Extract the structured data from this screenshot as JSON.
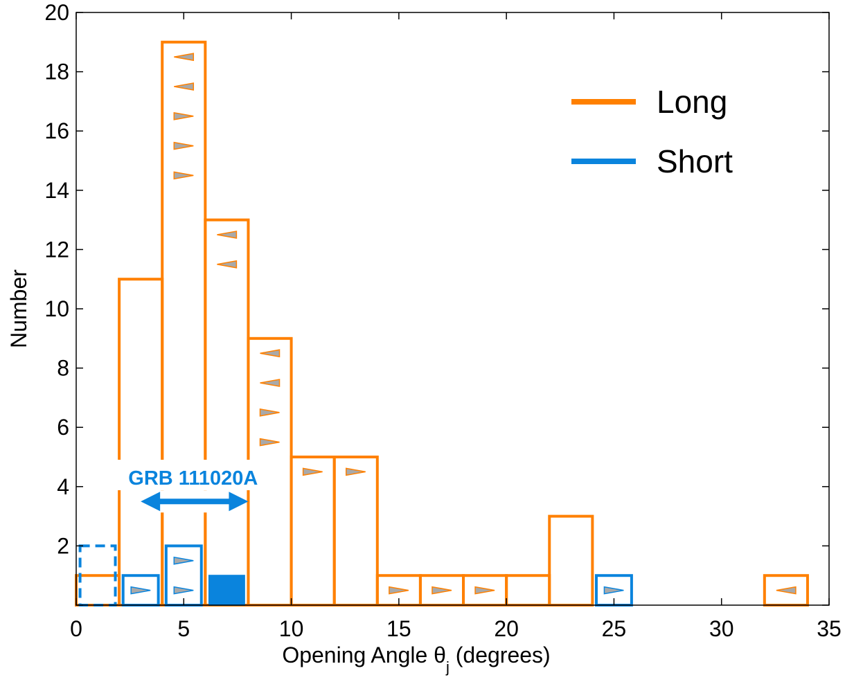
{
  "chart_data": {
    "type": "bar",
    "xlabel_main": "Opening Angle θ",
    "xlabel_sub": "j",
    "xlabel_tail": " (degrees)",
    "ylabel": "Number",
    "xlim": [
      0,
      35
    ],
    "ylim": [
      0,
      20
    ],
    "xticks": [
      0,
      5,
      10,
      15,
      20,
      25,
      30,
      35
    ],
    "yticks": [
      2,
      4,
      6,
      8,
      10,
      12,
      14,
      16,
      18,
      20
    ],
    "ytick_zero_labeled": false,
    "grid": false,
    "legend_position": "top-right",
    "series": [
      {
        "name": "Long",
        "color": "#FF8000",
        "bins": [
          {
            "x0": 0,
            "x1": 2,
            "count": 1
          },
          {
            "x0": 2,
            "x1": 4,
            "count": 11
          },
          {
            "x0": 4,
            "x1": 6,
            "count": 19
          },
          {
            "x0": 6,
            "x1": 8,
            "count": 13
          },
          {
            "x0": 8,
            "x1": 10,
            "count": 9
          },
          {
            "x0": 10,
            "x1": 12,
            "count": 5
          },
          {
            "x0": 12,
            "x1": 14,
            "count": 5
          },
          {
            "x0": 14,
            "x1": 16,
            "count": 1
          },
          {
            "x0": 16,
            "x1": 18,
            "count": 1
          },
          {
            "x0": 18,
            "x1": 20,
            "count": 1
          },
          {
            "x0": 20,
            "x1": 22,
            "count": 1
          },
          {
            "x0": 22,
            "x1": 24,
            "count": 3
          },
          {
            "x0": 24,
            "x1": 26,
            "count": 0
          },
          {
            "x0": 26,
            "x1": 28,
            "count": 0
          },
          {
            "x0": 28,
            "x1": 30,
            "count": 0
          },
          {
            "x0": 30,
            "x1": 32,
            "count": 0
          },
          {
            "x0": 32,
            "x1": 34,
            "count": 1
          }
        ],
        "limits": [
          {
            "x": 5,
            "y": 18.5,
            "dir": "left"
          },
          {
            "x": 5,
            "y": 17.5,
            "dir": "left"
          },
          {
            "x": 5,
            "y": 16.5,
            "dir": "right"
          },
          {
            "x": 5,
            "y": 15.5,
            "dir": "right"
          },
          {
            "x": 5,
            "y": 14.5,
            "dir": "right"
          },
          {
            "x": 7,
            "y": 12.5,
            "dir": "left"
          },
          {
            "x": 7,
            "y": 11.5,
            "dir": "left"
          },
          {
            "x": 9,
            "y": 8.5,
            "dir": "left"
          },
          {
            "x": 9,
            "y": 7.5,
            "dir": "left"
          },
          {
            "x": 9,
            "y": 6.5,
            "dir": "right"
          },
          {
            "x": 9,
            "y": 5.5,
            "dir": "right"
          },
          {
            "x": 11,
            "y": 4.5,
            "dir": "right"
          },
          {
            "x": 13,
            "y": 4.5,
            "dir": "right"
          },
          {
            "x": 15,
            "y": 0.5,
            "dir": "right"
          },
          {
            "x": 17,
            "y": 0.5,
            "dir": "right"
          },
          {
            "x": 19,
            "y": 0.5,
            "dir": "right"
          },
          {
            "x": 33,
            "y": 0.5,
            "dir": "left"
          }
        ]
      },
      {
        "name": "Short",
        "color": "#0A84DD",
        "bins": [
          {
            "x0": 2,
            "x1": 4,
            "count": 1
          },
          {
            "x0": 4,
            "x1": 6,
            "count": 2
          },
          {
            "x0": 24,
            "x1": 26,
            "count": 1
          }
        ],
        "dashed_bins": [
          {
            "x0": 0,
            "x1": 2,
            "count": 2
          }
        ],
        "filled_bins": [
          {
            "x0": 6,
            "x1": 8,
            "count": 1
          }
        ],
        "limits": [
          {
            "x": 3,
            "y": 0.5,
            "dir": "right"
          },
          {
            "x": 5,
            "y": 1.5,
            "dir": "right"
          },
          {
            "x": 5,
            "y": 0.5,
            "dir": "right"
          },
          {
            "x": 25,
            "y": 0.5,
            "dir": "right"
          }
        ]
      }
    ],
    "annotation": {
      "label": "GRB 111020A",
      "range": [
        3,
        8
      ],
      "y": 3.5,
      "color": "#0A84DD"
    }
  }
}
